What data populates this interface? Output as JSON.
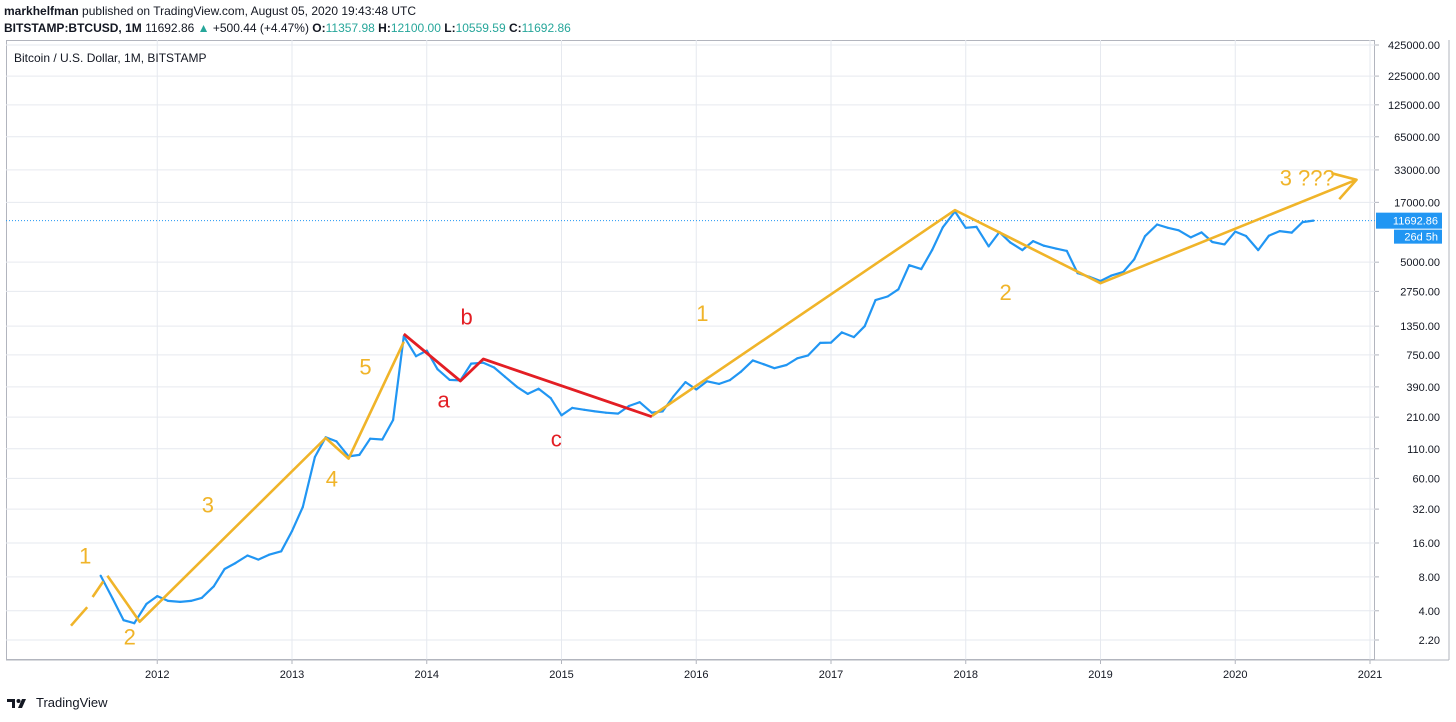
{
  "header": {
    "author": "markhelfman",
    "published_text": "published on TradingView.com, August 05, 2020 19:43:48 UTC",
    "symbol": "BITSTAMP:BTCUSD, 1M",
    "last": "11692.86",
    "change": "+500.44 (+4.47%)",
    "o_label": "O:",
    "o_value": "11357.98",
    "h_label": "H:",
    "h_value": "12100.00",
    "l_label": "L:",
    "l_value": "10559.59",
    "c_label": "C:",
    "c_value": "11692.86"
  },
  "chart_title": "Bitcoin / U.S. Dollar, 1M, BITSTAMP",
  "price_label": "11692.86",
  "countdown_label": "26d 5h",
  "footer_brand": "TradingView",
  "colors": {
    "price_line": "#2196f3",
    "wave_impulse": "#f0b429",
    "wave_corrective": "#e31e24",
    "price_tag": "#2196f3",
    "grid": "#e6e9ef"
  },
  "chart_data": {
    "type": "line",
    "yscale": "log",
    "xlim": [
      2011.0,
      2021.0
    ],
    "y_ticks": [
      {
        "v": 2.2,
        "label": "2.20"
      },
      {
        "v": 4,
        "label": "4.00"
      },
      {
        "v": 8,
        "label": "8.00"
      },
      {
        "v": 16,
        "label": "16.00"
      },
      {
        "v": 32,
        "label": "32.00"
      },
      {
        "v": 60,
        "label": "60.00"
      },
      {
        "v": 110,
        "label": "110.00"
      },
      {
        "v": 210,
        "label": "210.00"
      },
      {
        "v": 390,
        "label": "390.00"
      },
      {
        "v": 750,
        "label": "750.00"
      },
      {
        "v": 1350,
        "label": "1350.00"
      },
      {
        "v": 2750,
        "label": "2750.00"
      },
      {
        "v": 5000,
        "label": "5000.00"
      },
      {
        "v": 17000,
        "label": "17000.00"
      },
      {
        "v": 33000,
        "label": "33000.00"
      },
      {
        "v": 65000,
        "label": "65000.00"
      },
      {
        "v": 125000,
        "label": "125000.00"
      },
      {
        "v": 225000,
        "label": "225000.00"
      },
      {
        "v": 425000,
        "label": "425000.00"
      }
    ],
    "x_ticks": [
      {
        "v": 2012,
        "label": "2012"
      },
      {
        "v": 2013,
        "label": "2013"
      },
      {
        "v": 2014,
        "label": "2014"
      },
      {
        "v": 2015,
        "label": "2015"
      },
      {
        "v": 2016,
        "label": "2016"
      },
      {
        "v": 2017,
        "label": "2017"
      },
      {
        "v": 2018,
        "label": "2018"
      },
      {
        "v": 2019,
        "label": "2019"
      },
      {
        "v": 2020,
        "label": "2020"
      },
      {
        "v": 2021,
        "label": "2021"
      }
    ],
    "last_price": 11692.86,
    "series": [
      {
        "x": [
          2011.58,
          2011.67,
          2011.75,
          2011.83,
          2011.92,
          2012.0,
          2012.08,
          2012.17,
          2012.25,
          2012.33,
          2012.42,
          2012.5,
          2012.58,
          2012.67,
          2012.75,
          2012.83,
          2012.92,
          2013.0,
          2013.08,
          2013.17,
          2013.25,
          2013.33,
          2013.42,
          2013.5,
          2013.58,
          2013.67,
          2013.75,
          2013.83,
          2013.92,
          2014.0,
          2014.08,
          2014.17,
          2014.25,
          2014.33,
          2014.42,
          2014.5,
          2014.58,
          2014.67,
          2014.75,
          2014.83,
          2014.92,
          2015.0,
          2015.08,
          2015.17,
          2015.25,
          2015.33,
          2015.42,
          2015.5,
          2015.58,
          2015.67,
          2015.75,
          2015.83,
          2015.92,
          2016.0,
          2016.08,
          2016.17,
          2016.25,
          2016.33,
          2016.42,
          2016.5,
          2016.58,
          2016.67,
          2016.75,
          2016.83,
          2016.92,
          2017.0,
          2017.08,
          2017.17,
          2017.25,
          2017.33,
          2017.42,
          2017.5,
          2017.58,
          2017.67,
          2017.75,
          2017.83,
          2017.92,
          2018.0,
          2018.08,
          2018.17,
          2018.25,
          2018.33,
          2018.42,
          2018.5,
          2018.58,
          2018.67,
          2018.75,
          2018.83,
          2018.92,
          2019.0,
          2019.08,
          2019.17,
          2019.25,
          2019.33,
          2019.42,
          2019.5,
          2019.58,
          2019.67,
          2019.75,
          2019.83,
          2019.92,
          2020.0,
          2020.08,
          2020.17,
          2020.25,
          2020.33,
          2020.42,
          2020.5,
          2020.58
        ],
        "y": [
          8.2,
          5.1,
          3.3,
          3.1,
          4.6,
          5.4,
          4.9,
          4.8,
          4.9,
          5.2,
          6.6,
          9.4,
          10.6,
          12.4,
          11.4,
          12.6,
          13.5,
          20.4,
          33.4,
          93,
          139,
          128,
          94,
          97,
          135,
          133,
          198,
          1100,
          730,
          820,
          560,
          450,
          445,
          628,
          640,
          580,
          480,
          390,
          338,
          375,
          310,
          218,
          254,
          244,
          236,
          230,
          226,
          264,
          285,
          230,
          236,
          320,
          430,
          370,
          437,
          415,
          448,
          530,
          670,
          620,
          572,
          610,
          700,
          742,
          960,
          965,
          1190,
          1080,
          1350,
          2300,
          2480,
          2870,
          4700,
          4340,
          6400,
          10200,
          14100,
          10100,
          10300,
          6900,
          9250,
          7500,
          6400,
          7700,
          7000,
          6600,
          6300,
          4000,
          3700,
          3400,
          3800,
          4100,
          5300,
          8500,
          10800,
          10100,
          9600,
          8300,
          9200,
          7550,
          7200,
          9350,
          8550,
          6400,
          8600,
          9450,
          9150,
          11350,
          11693
        ]
      }
    ],
    "wave_labels": [
      {
        "text": "1",
        "x": 2011.42,
        "y": 10.5,
        "color": "#f0b429"
      },
      {
        "text": "2",
        "x": 2011.75,
        "y": 2.0,
        "color": "#f0b429"
      },
      {
        "text": "3",
        "x": 2012.33,
        "y": 30.0,
        "color": "#f0b429"
      },
      {
        "text": "4",
        "x": 2013.25,
        "y": 51.0,
        "color": "#f0b429"
      },
      {
        "text": "5",
        "x": 2013.5,
        "y": 500.0,
        "color": "#f0b429"
      },
      {
        "text": "a",
        "x": 2014.08,
        "y": 255.0,
        "color": "#e31e24"
      },
      {
        "text": "b",
        "x": 2014.25,
        "y": 1400.0,
        "color": "#e31e24"
      },
      {
        "text": "c",
        "x": 2014.92,
        "y": 115.0,
        "color": "#e31e24"
      },
      {
        "text": "1",
        "x": 2016.0,
        "y": 1500.0,
        "color": "#f0b429"
      },
      {
        "text": "2",
        "x": 2018.25,
        "y": 2300.0,
        "color": "#f0b429"
      },
      {
        "text": "3 ???",
        "x": 2020.33,
        "y": 24000.0,
        "color": "#f0b429"
      }
    ],
    "impulse_lines": [
      {
        "points": [
          [
            2011.36,
            2.95
          ],
          [
            2011.48,
            4.3
          ]
        ],
        "dashed": true
      },
      {
        "points": [
          [
            2011.52,
            5.3
          ],
          [
            2011.6,
            7.3
          ]
        ],
        "dashed": true
      },
      {
        "points": [
          [
            2011.63,
            8.2
          ],
          [
            2011.87,
            3.2
          ],
          [
            2013.25,
            137
          ],
          [
            2013.42,
            90
          ],
          [
            2013.83,
            980
          ]
        ],
        "dashed": false
      },
      {
        "points": [
          [
            2015.67,
            215
          ],
          [
            2017.92,
            14500
          ],
          [
            2019.0,
            3250
          ],
          [
            2020.9,
            27000
          ]
        ],
        "dashed": false
      }
    ],
    "corrective_lines": [
      {
        "points": [
          [
            2013.83,
            1150
          ],
          [
            2014.25,
            440
          ],
          [
            2014.42,
            690
          ],
          [
            2015.67,
            212
          ]
        ]
      }
    ],
    "arrow": {
      "from": [
        2020.6,
        21000
      ],
      "to": [
        2020.9,
        27000
      ]
    }
  }
}
